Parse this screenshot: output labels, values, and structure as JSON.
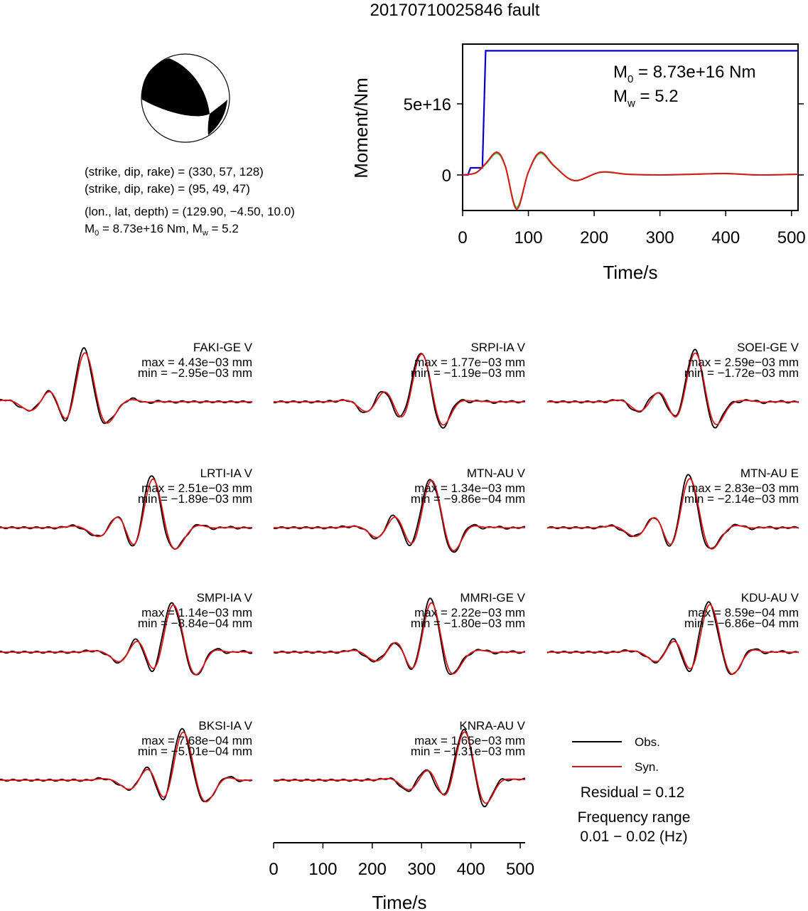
{
  "title": "20170710025846 fault",
  "event_info": {
    "line1": "(strike, dip, rake) = (330, 57, 128)",
    "line2": "(strike, dip, rake) = (95, 49, 47)",
    "line3": "(lon., lat, depth) = (129.90, −4.50, 10.0)",
    "line4_m0": "M",
    "line4_sub": "0",
    "line4_rest": " = 8.73e+16 Nm, M",
    "line4_sub2": "w",
    "line4_tail": " = 5.2"
  },
  "moment_plot": {
    "ylabel": "Moment/Nm",
    "xlabel": "Time/s",
    "yticks": [
      "0",
      "5e+16"
    ],
    "xticks": [
      "0",
      "100",
      "200",
      "300",
      "400",
      "500"
    ],
    "m0_main": "M",
    "m0_sub": "0",
    "m0_rest": " = 8.73e+16 Nm",
    "mw_main": "M",
    "mw_sub": "w",
    "mw_rest": " = 5.2"
  },
  "traces": [
    {
      "name": "FAKI-GE V",
      "max": "max = 4.43e−03 mm",
      "min": "min = −2.95e−03 mm"
    },
    {
      "name": "SRPI-IA V",
      "max": "max = 1.77e−03 mm",
      "min": "min = −1.19e−03 mm"
    },
    {
      "name": "SOEI-GE V",
      "max": "max = 2.59e−03 mm",
      "min": "min = −1.72e−03 mm"
    },
    {
      "name": "LRTI-IA V",
      "max": "max = 2.51e−03 mm",
      "min": "min = −1.89e−03 mm"
    },
    {
      "name": "MTN-AU V",
      "max": "max = 1.34e−03 mm",
      "min": "min = −9.86e−04 mm"
    },
    {
      "name": "MTN-AU E",
      "max": "max = 2.83e−03 mm",
      "min": "min = −2.14e−03 mm"
    },
    {
      "name": "SMPI-IA V",
      "max": "max = 1.14e−03 mm",
      "min": "min = −8.84e−04 mm"
    },
    {
      "name": "MMRI-GE V",
      "max": "max = 2.22e−03 mm",
      "min": "min = −1.80e−03 mm"
    },
    {
      "name": "KDU-AU V",
      "max": "max = 8.59e−04 mm",
      "min": "min = −6.86e−04 mm"
    },
    {
      "name": "BKSI-IA V",
      "max": "max = 7.68e−04 mm",
      "min": "min = −5.01e−04 mm"
    },
    {
      "name": "KNRA-AU V",
      "max": "max = 1.65e−03 mm",
      "min": "min = −1.31e−03 mm"
    }
  ],
  "bottom_axis": {
    "xlabel": "Time/s",
    "xticks": [
      "0",
      "100",
      "200",
      "300",
      "400",
      "500"
    ]
  },
  "legend": {
    "obs": "Obs.",
    "syn": "Syn.",
    "residual": "Residual = 0.12",
    "freq_title": "Frequency range",
    "freq_range": "0.01 − 0.02 (Hz)"
  },
  "colors": {
    "observed": "#000000",
    "synthetic": "#e0141a",
    "moment_cumulative": "#0000cc",
    "moment_rate_green": "#2ecc2e",
    "moment_rate_red": "#e0141a",
    "beachball_fill": "#000000"
  },
  "chart_data": [
    {
      "type": "line",
      "title": "",
      "xlabel": "Time/s",
      "ylabel": "Moment/Nm",
      "xlim": [
        0,
        510
      ],
      "ylim": [
        -2.5e+16,
        9.2e+16
      ],
      "series": [
        {
          "name": "",
          "x": [
            0,
            8,
            12,
            30,
            35,
            510
          ],
          "values": [
            0,
            0,
            5000000000000000.0,
            5000000000000000.0,
            8.73e+16,
            8.73e+16
          ]
        },
        {
          "name": "",
          "x": [
            0,
            20,
            35,
            52,
            65,
            82,
            100,
            118,
            140,
            170,
            210,
            250,
            300,
            350,
            400,
            450,
            510
          ],
          "values": [
            0,
            1500000000000000.0,
            8000000000000000.0,
            1.6e+16,
            6000000000000000.0,
            -2.4e+16,
            2000000000000000.0,
            1.6e+16,
            6000000000000000.0,
            -4000000000000000.0,
            2000000000000000.0,
            500000000000000.0,
            0,
            500000000000000.0,
            1000000000000000.0,
            0,
            500000000000000.0
          ]
        }
      ]
    },
    {
      "type": "line",
      "title": "",
      "xlabel": "Time/s",
      "xlim": [
        0,
        510
      ],
      "x": [
        0,
        100,
        200,
        300,
        400,
        500
      ],
      "series": []
    }
  ]
}
